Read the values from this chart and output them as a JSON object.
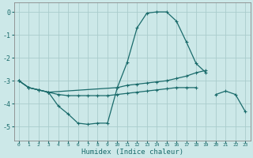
{
  "xlabel": "Humidex (Indice chaleur)",
  "xlim": [
    -0.5,
    23.5
  ],
  "ylim": [
    -5.6,
    0.4
  ],
  "yticks": [
    0,
    -1,
    -2,
    -3,
    -4,
    -5
  ],
  "xticks": [
    0,
    1,
    2,
    3,
    4,
    5,
    6,
    7,
    8,
    9,
    10,
    11,
    12,
    13,
    14,
    15,
    16,
    17,
    18,
    19,
    20,
    21,
    22,
    23
  ],
  "bg_color": "#cce8e8",
  "grid_color": "#aacccc",
  "line_color": "#1a6b6b",
  "spine_color": "#888888",
  "curves": [
    {
      "x": [
        0,
        1,
        2,
        3,
        4,
        5,
        6,
        7,
        8,
        9,
        10,
        11,
        12,
        13,
        14,
        15,
        16,
        17,
        18,
        19
      ],
      "y": [
        -3.0,
        -3.3,
        -3.4,
        -3.5,
        -4.1,
        -4.45,
        -4.85,
        -4.9,
        -4.85,
        -4.85,
        -3.3,
        -2.2,
        -0.7,
        -0.05,
        0.0,
        0.0,
        -0.4,
        -1.3,
        -2.25,
        -2.65
      ]
    },
    {
      "x": [
        0,
        1,
        2,
        3,
        10,
        11,
        12,
        13,
        14,
        15,
        16,
        17,
        18,
        19
      ],
      "y": [
        -3.0,
        -3.3,
        -3.4,
        -3.5,
        -3.3,
        -3.2,
        -3.15,
        -3.1,
        -3.05,
        -3.0,
        -2.9,
        -2.8,
        -2.65,
        -2.55
      ]
    },
    {
      "x": [
        0,
        1,
        2,
        3,
        4,
        5,
        6,
        7,
        8,
        9,
        10,
        11,
        12,
        13,
        14,
        15,
        16,
        17,
        18
      ],
      "y": [
        -3.0,
        -3.3,
        -3.4,
        -3.5,
        -3.6,
        -3.65,
        -3.65,
        -3.65,
        -3.65,
        -3.65,
        -3.6,
        -3.55,
        -3.5,
        -3.45,
        -3.4,
        -3.35,
        -3.3,
        -3.3,
        -3.3
      ]
    },
    {
      "x": [
        20,
        21,
        22,
        23
      ],
      "y": [
        -3.6,
        -3.45,
        -3.6,
        -4.35
      ]
    }
  ]
}
